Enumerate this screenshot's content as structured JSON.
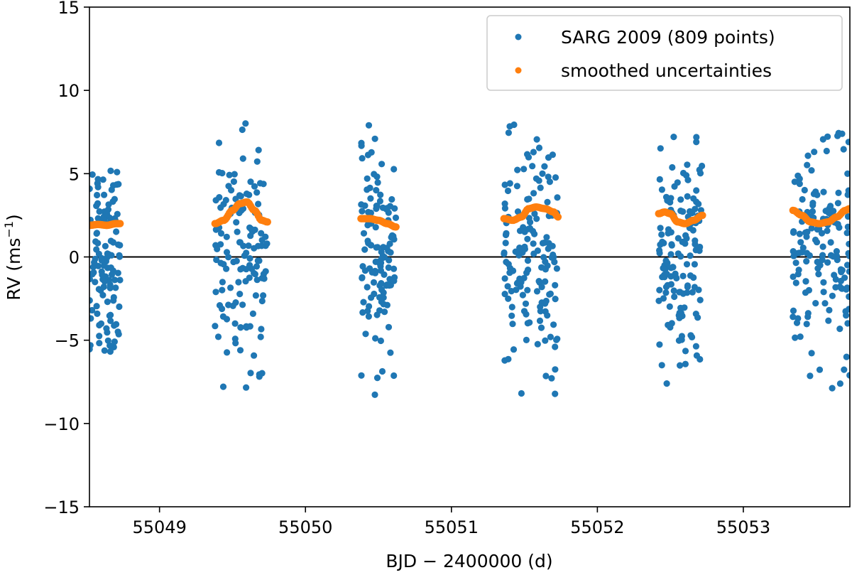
{
  "chart_data": {
    "type": "scatter",
    "xlabel": "BJD − 2400000 (d)",
    "ylabel_main": "RV (ms",
    "ylabel_sup": "−1",
    "ylabel_close": ")",
    "xlim": [
      55048.52,
      55053.73
    ],
    "ylim": [
      -15,
      15
    ],
    "xticks": [
      55049,
      55050,
      55051,
      55052,
      55053
    ],
    "xtick_labels": [
      "55049",
      "55050",
      "55051",
      "55052",
      "55053"
    ],
    "yticks": [
      -15,
      -10,
      -5,
      0,
      5,
      10,
      15
    ],
    "ytick_labels": [
      "−15",
      "−10",
      "−5",
      "0",
      "5",
      "10",
      "15"
    ],
    "zero_line": 0,
    "legend_position": "top-right",
    "legend": [
      {
        "label": "SARG 2009 (809 points)",
        "color": "#1f77b4"
      },
      {
        "label": "smoothed uncertainties",
        "color": "#ff7f0e"
      }
    ],
    "series": [
      {
        "name": "SARG 2009 (809 points)",
        "color": "#1f77b4",
        "note": "RV points scattered roughly between -9 and +8.5 m/s within six nightly observation windows",
        "nights": [
          {
            "x_start": 55048.52,
            "x_end": 55048.73,
            "y_min": -6.0,
            "y_max": 5.3,
            "count": 120
          },
          {
            "x_start": 55049.38,
            "x_end": 55049.74,
            "y_min": -8.0,
            "y_max": 8.3,
            "count": 130
          },
          {
            "x_start": 55050.38,
            "x_end": 55050.62,
            "y_min": -8.4,
            "y_max": 8.4,
            "count": 120
          },
          {
            "x_start": 55051.36,
            "x_end": 55051.73,
            "y_min": -8.5,
            "y_max": 8.3,
            "count": 150
          },
          {
            "x_start": 55052.42,
            "x_end": 55052.72,
            "y_min": -8.8,
            "y_max": 8.0,
            "count": 140
          },
          {
            "x_start": 55053.34,
            "x_end": 55053.73,
            "y_min": -8.6,
            "y_max": 7.6,
            "count": 149
          }
        ]
      },
      {
        "name": "smoothed uncertainties",
        "color": "#ff7f0e",
        "segments": [
          {
            "x": [
              55048.52,
              55048.58,
              55048.64,
              55048.7,
              55048.73
            ],
            "y": [
              1.9,
              1.95,
              1.9,
              2.0,
              2.0
            ]
          },
          {
            "x": [
              55049.38,
              55049.44,
              55049.5,
              55049.55,
              55049.6,
              55049.65,
              55049.7,
              55049.74
            ],
            "y": [
              2.0,
              2.2,
              2.8,
              3.2,
              3.3,
              2.8,
              2.2,
              2.1
            ]
          },
          {
            "x": [
              55050.38,
              55050.44,
              55050.5,
              55050.56,
              55050.62
            ],
            "y": [
              2.3,
              2.3,
              2.2,
              2.0,
              1.8
            ]
          },
          {
            "x": [
              55051.36,
              55051.42,
              55051.48,
              55051.53,
              55051.58,
              55051.64,
              55051.7,
              55051.73
            ],
            "y": [
              2.3,
              2.2,
              2.4,
              2.9,
              3.0,
              2.9,
              2.7,
              2.4
            ]
          },
          {
            "x": [
              55052.42,
              55052.46,
              55052.5,
              55052.55,
              55052.6,
              55052.66,
              55052.72
            ],
            "y": [
              2.6,
              2.7,
              2.6,
              2.1,
              2.0,
              2.2,
              2.5
            ]
          },
          {
            "x": [
              55053.34,
              55053.4,
              55053.46,
              55053.52,
              55053.58,
              55053.64,
              55053.7,
              55053.73
            ],
            "y": [
              2.8,
              2.5,
              2.1,
              2.0,
              2.1,
              2.4,
              2.8,
              2.9
            ]
          }
        ]
      }
    ]
  }
}
